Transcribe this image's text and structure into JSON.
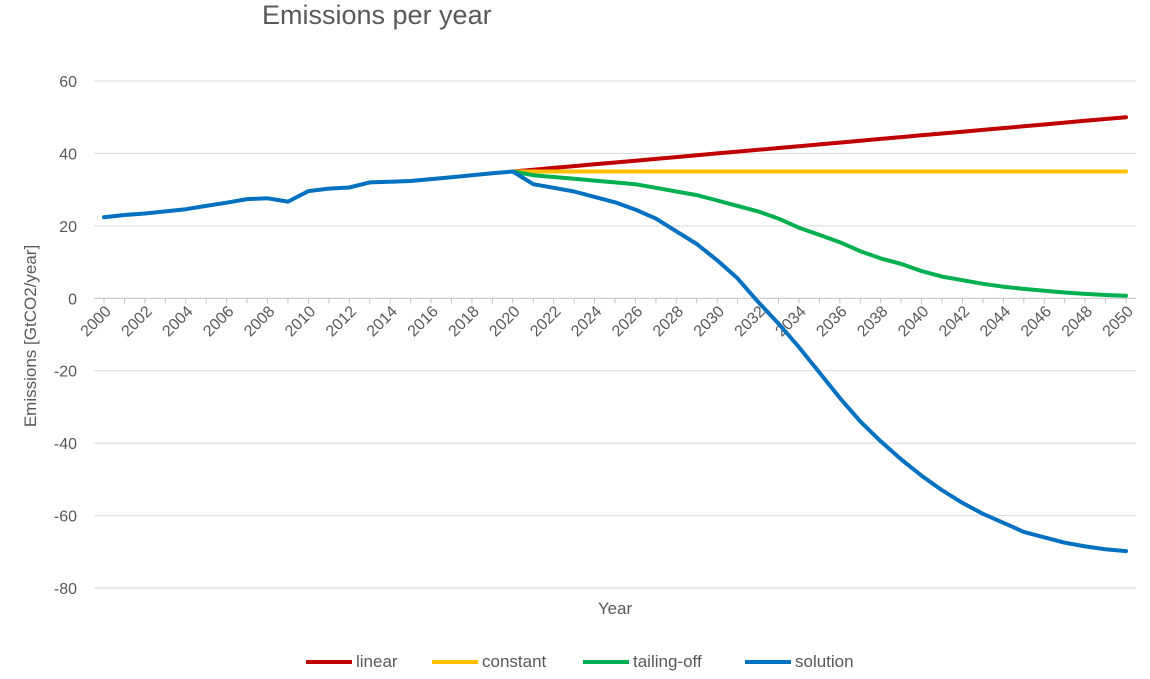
{
  "chart_data": {
    "type": "line",
    "title": "Emissions per year",
    "xlabel": "Year",
    "ylabel": "Emissions [GtCO2/year]",
    "ylim": [
      -80,
      60
    ],
    "yticks": [
      60,
      40,
      20,
      0,
      -20,
      -40,
      -60,
      -80
    ],
    "x": [
      2000,
      2001,
      2002,
      2003,
      2004,
      2005,
      2006,
      2007,
      2008,
      2009,
      2010,
      2011,
      2012,
      2013,
      2014,
      2015,
      2016,
      2017,
      2018,
      2019,
      2020,
      2021,
      2022,
      2023,
      2024,
      2025,
      2026,
      2027,
      2028,
      2029,
      2030,
      2031,
      2032,
      2033,
      2034,
      2035,
      2036,
      2037,
      2038,
      2039,
      2040,
      2041,
      2042,
      2043,
      2044,
      2045,
      2046,
      2047,
      2048,
      2049,
      2050
    ],
    "xtick_labels": [
      "2000",
      "2002",
      "2004",
      "2006",
      "2008",
      "2010",
      "2012",
      "2014",
      "2016",
      "2018",
      "2020",
      "2022",
      "2024",
      "2026",
      "2028",
      "2030",
      "2032",
      "2034",
      "2036",
      "2038",
      "2040",
      "2042",
      "2044",
      "2046",
      "2048",
      "2050"
    ],
    "grid": true,
    "legend_position": "bottom",
    "series": [
      {
        "name": "linear",
        "color": "#C00000",
        "values": [
          null,
          null,
          null,
          null,
          null,
          null,
          null,
          null,
          null,
          null,
          null,
          null,
          null,
          null,
          null,
          null,
          null,
          null,
          null,
          null,
          35.0,
          35.5,
          36.0,
          36.5,
          37.0,
          37.5,
          38.0,
          38.5,
          39.0,
          39.5,
          40.0,
          40.5,
          41.0,
          41.5,
          42.0,
          42.5,
          43.0,
          43.5,
          44.0,
          44.5,
          45.0,
          45.5,
          46.0,
          46.5,
          47.0,
          47.5,
          48.0,
          48.5,
          49.0,
          49.5,
          50.0
        ]
      },
      {
        "name": "constant",
        "color": "#FFC000",
        "values": [
          null,
          null,
          null,
          null,
          null,
          null,
          null,
          null,
          null,
          null,
          null,
          null,
          null,
          null,
          null,
          null,
          null,
          null,
          null,
          null,
          35.0,
          35.0,
          35.0,
          35.0,
          35.0,
          35.0,
          35.0,
          35.0,
          35.0,
          35.0,
          35.0,
          35.0,
          35.0,
          35.0,
          35.0,
          35.0,
          35.0,
          35.0,
          35.0,
          35.0,
          35.0,
          35.0,
          35.0,
          35.0,
          35.0,
          35.0,
          35.0,
          35.0,
          35.0,
          35.0,
          35.0
        ]
      },
      {
        "name": "tailing-off",
        "color": "#00B050",
        "values": [
          null,
          null,
          null,
          null,
          null,
          null,
          null,
          null,
          null,
          null,
          null,
          null,
          null,
          null,
          null,
          null,
          null,
          null,
          null,
          null,
          35.0,
          34.0,
          33.5,
          33.0,
          32.5,
          32.0,
          31.5,
          30.5,
          29.5,
          28.5,
          27.0,
          25.5,
          24.0,
          22.0,
          19.5,
          17.5,
          15.5,
          13.0,
          11.0,
          9.5,
          7.5,
          6.0,
          5.0,
          4.0,
          3.2,
          2.6,
          2.1,
          1.6,
          1.2,
          0.9,
          0.7
        ]
      },
      {
        "name": "solution",
        "color": "#0070C0",
        "values": [
          22.4,
          23.0,
          23.4,
          24.0,
          24.6,
          25.5,
          26.4,
          27.4,
          27.6,
          26.7,
          29.6,
          30.3,
          30.6,
          32.0,
          32.2,
          32.4,
          32.9,
          33.4,
          34.0,
          34.5,
          35.0,
          31.5,
          30.5,
          29.5,
          28.0,
          26.5,
          24.5,
          22.0,
          18.5,
          15.0,
          10.5,
          5.5,
          -1.0,
          -7.0,
          -13.5,
          -20.5,
          -27.5,
          -34.0,
          -39.5,
          -44.5,
          -49.0,
          -53.0,
          -56.5,
          -59.5,
          -62.0,
          -64.5,
          -66.0,
          -67.5,
          -68.5,
          -69.3,
          -69.8
        ]
      }
    ]
  }
}
